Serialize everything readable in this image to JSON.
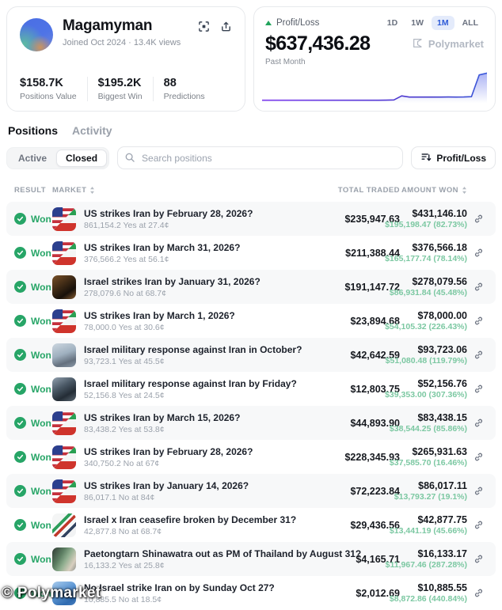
{
  "colors": {
    "accent_blue": "#2e5bd7",
    "range_selected_bg": "#e4ebfb",
    "green": "#27a567",
    "light_green": "#7cc8a2",
    "row_stripe": "#f7f8f9",
    "muted_text": "#9aa1ab",
    "chart_line_start": "#7c3aed",
    "chart_line_end": "#3b5bdb"
  },
  "profile": {
    "name": "Magamyman",
    "meta": "Joined Oct 2024 · 13.4K views",
    "action_icons": [
      "qr-scan-icon",
      "share-icon"
    ],
    "stats": [
      {
        "value": "$158.7K",
        "label": "Positions Value"
      },
      {
        "value": "$195.2K",
        "label": "Biggest Win"
      },
      {
        "value": "88",
        "label": "Predictions"
      }
    ]
  },
  "pnl_card": {
    "label": "Profit/Loss",
    "value": "$637,436.28",
    "period_label": "Past Month",
    "watermark": "Polymarket",
    "ranges": [
      "1D",
      "1W",
      "1M",
      "ALL"
    ],
    "selected_range": "1M"
  },
  "chart_data": {
    "type": "line",
    "title": "Profit/Loss — Past Month",
    "xlabel": "time (past month, unlabeled axis)",
    "ylabel": "profit/loss (USD, unlabeled axis)",
    "final_value": 637436.28,
    "ylim": [
      0,
      660000
    ],
    "grid": false,
    "legend": "none",
    "values": [
      78000,
      78200,
      78100,
      78300,
      78200,
      78400,
      78300,
      78500,
      78400,
      78600,
      78500,
      78700,
      78600,
      78800,
      78700,
      78900,
      79200,
      85000,
      168000,
      143000,
      143500,
      143200,
      144000,
      143800,
      144500,
      144200,
      145500,
      152000,
      600000,
      637436.28
    ]
  },
  "tabs": [
    {
      "label": "Positions",
      "active": true
    },
    {
      "label": "Activity",
      "active": false
    }
  ],
  "filters": {
    "segments": [
      "Active",
      "Closed"
    ],
    "selected_segment": "Closed",
    "search_placeholder": "Search positions",
    "sort_button_label": "Profit/Loss"
  },
  "table": {
    "columns": [
      "RESULT",
      "MARKET",
      "TOTAL TRADED",
      "AMOUNT WON"
    ],
    "sortable_columns": [
      "MARKET",
      "AMOUNT WON"
    ],
    "rows": [
      {
        "result": "Won",
        "icon": "us-iran-flags",
        "market": "US strikes Iran by February 28, 2026?",
        "detail": "861,154.2 Yes at 27.4¢",
        "total_traded": "$235,947.63",
        "amount_won": "$431,146.10",
        "profit": "$195,198.47 (82.73%)"
      },
      {
        "result": "Won",
        "icon": "us-iran-flags",
        "market": "US strikes Iran by March 31, 2026?",
        "detail": "376,566.2 Yes at 56.1¢",
        "total_traded": "$211,388.44",
        "amount_won": "$376,566.18",
        "profit": "$165,177.74 (78.14%)"
      },
      {
        "result": "Won",
        "icon": "explosion-photo",
        "market": "Israel strikes Iran by January 31, 2026?",
        "detail": "278,079.6 No at 68.7¢",
        "total_traded": "$191,147.72",
        "amount_won": "$278,079.56",
        "profit": "$86,931.84 (45.48%)"
      },
      {
        "result": "Won",
        "icon": "us-iran-flags",
        "market": "US strikes Iran by March 1, 2026?",
        "detail": "78,000.0 Yes at 30.6¢",
        "total_traded": "$23,894.68",
        "amount_won": "$78,000.00",
        "profit": "$54,105.32 (226.43%)"
      },
      {
        "result": "Won",
        "icon": "jet-clouds-photo",
        "market": "Israel military response against Iran in October?",
        "detail": "93,723.1 Yes at 45.5¢",
        "total_traded": "$42,642.59",
        "amount_won": "$93,723.06",
        "profit": "$51,080.48 (119.79%)"
      },
      {
        "result": "Won",
        "icon": "jet-dark-photo",
        "market": "Israel military response against Iran by Friday?",
        "detail": "52,156.8 Yes at 24.5¢",
        "total_traded": "$12,803.75",
        "amount_won": "$52,156.76",
        "profit": "$39,353.00 (307.36%)"
      },
      {
        "result": "Won",
        "icon": "us-iran-flags",
        "market": "US strikes Iran by March 15, 2026?",
        "detail": "83,438.2 Yes at 53.8¢",
        "total_traded": "$44,893.90",
        "amount_won": "$83,438.15",
        "profit": "$38,544.25 (85.86%)"
      },
      {
        "result": "Won",
        "icon": "us-iran-flags",
        "market": "US strikes Iran by February 28, 2026?",
        "detail": "340,750.2 No at 67¢",
        "total_traded": "$228,345.93",
        "amount_won": "$265,931.63",
        "profit": "$37,585.70 (16.46%)"
      },
      {
        "result": "Won",
        "icon": "us-iran-flags",
        "market": "US strikes Iran by January 14, 2026?",
        "detail": "86,017.1 No at 84¢",
        "total_traded": "$72,223.84",
        "amount_won": "$86,017.11",
        "profit": "$13,793.27 (19.1%)"
      },
      {
        "result": "Won",
        "icon": "israel-iran-flags",
        "market": "Israel x Iran ceasefire broken by December 31?",
        "detail": "42,877.8 No at 68.7¢",
        "total_traded": "$29,436.56",
        "amount_won": "$42,877.75",
        "profit": "$13,441.19 (45.66%)"
      },
      {
        "result": "Won",
        "icon": "person-photo",
        "market": "Paetongtarn Shinawatra out as PM of Thailand by August 31?",
        "detail": "16,133.2 Yes at 25.8¢",
        "total_traded": "$4,165.71",
        "amount_won": "$16,133.17",
        "profit": "$11,967.46 (287.28%)"
      },
      {
        "result": "Won",
        "icon": "jet-blue-photo",
        "market": "No Israel strike Iran on by Sunday Oct 27?",
        "detail": "10,885.5 No at 18.5¢",
        "total_traded": "$2,012.69",
        "amount_won": "$10,885.55",
        "profit": "$8,872.86 (440.84%)"
      }
    ]
  },
  "page_watermark": "© Polymarket"
}
